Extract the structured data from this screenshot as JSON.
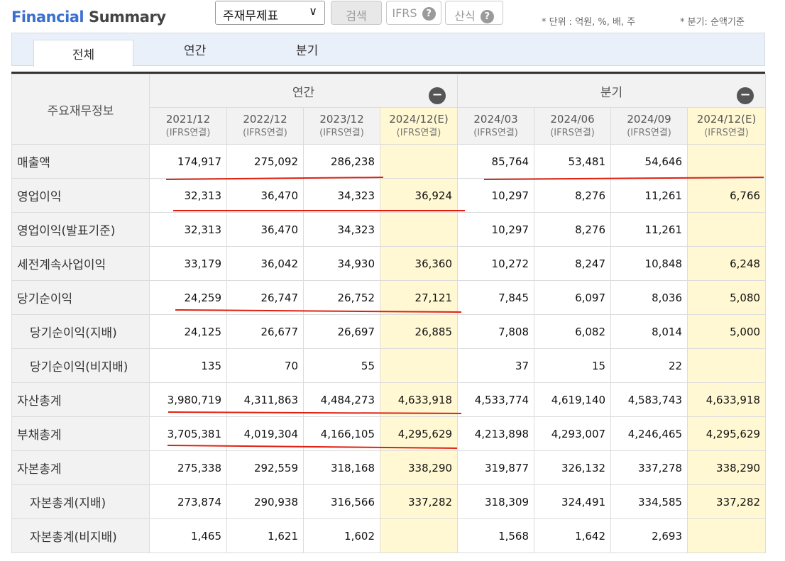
{
  "header": {
    "title_part1": "Financial",
    "title_part2": "Summary",
    "select_value": "주재무제표",
    "search_label": "검색",
    "ifrs_label": "IFRS",
    "calc_label": "산식",
    "help_glyph": "?",
    "unit_note": "* 단위 : 억원, %, 배, 주",
    "quarter_note": "* 분기: 순액기준"
  },
  "tabs": [
    "전체",
    "연간",
    "분기"
  ],
  "table": {
    "corner_label": "주요재무정보",
    "group_annual": "연간",
    "group_quarter": "분기",
    "collapse_glyph": "−",
    "columns": [
      {
        "date": "2021/12",
        "sub": "(IFRS연결)"
      },
      {
        "date": "2022/12",
        "sub": "(IFRS연결)"
      },
      {
        "date": "2023/12",
        "sub": "(IFRS연결)"
      },
      {
        "date": "2024/12(E)",
        "sub": "(IFRS연결)"
      },
      {
        "date": "2024/03",
        "sub": "(IFRS연결)"
      },
      {
        "date": "2024/06",
        "sub": "(IFRS연결)"
      },
      {
        "date": "2024/09",
        "sub": "(IFRS연결)"
      },
      {
        "date": "2024/12(E)",
        "sub": "(IFRS연결)"
      }
    ],
    "rows": [
      {
        "label": "매출액",
        "values": [
          "174,917",
          "275,092",
          "286,238",
          "",
          "85,764",
          "53,481",
          "54,646",
          ""
        ]
      },
      {
        "label": "영업이익",
        "values": [
          "32,313",
          "36,470",
          "34,323",
          "36,924",
          "10,297",
          "8,276",
          "11,261",
          "6,766"
        ]
      },
      {
        "label": "영업이익(발표기준)",
        "values": [
          "32,313",
          "36,470",
          "34,323",
          "",
          "10,297",
          "8,276",
          "11,261",
          ""
        ]
      },
      {
        "label": "세전계속사업이익",
        "values": [
          "33,179",
          "36,042",
          "34,930",
          "36,360",
          "10,272",
          "8,247",
          "10,848",
          "6,248"
        ]
      },
      {
        "label": "당기순이익",
        "values": [
          "24,259",
          "26,747",
          "26,752",
          "27,121",
          "7,845",
          "6,097",
          "8,036",
          "5,080"
        ]
      },
      {
        "label": "당기순이익(지배)",
        "values": [
          "24,125",
          "26,677",
          "26,697",
          "26,885",
          "7,808",
          "6,082",
          "8,014",
          "5,000"
        ]
      },
      {
        "label": "당기순이익(비지배)",
        "values": [
          "135",
          "70",
          "55",
          "",
          "37",
          "15",
          "22",
          ""
        ]
      },
      {
        "label": "자산총계",
        "values": [
          "3,980,719",
          "4,311,863",
          "4,484,273",
          "4,633,918",
          "4,533,774",
          "4,619,140",
          "4,583,743",
          "4,633,918"
        ]
      },
      {
        "label": "부채총계",
        "values": [
          "3,705,381",
          "4,019,304",
          "4,166,105",
          "4,295,629",
          "4,213,898",
          "4,293,007",
          "4,246,465",
          "4,295,629"
        ]
      },
      {
        "label": "자본총계",
        "values": [
          "275,338",
          "292,559",
          "318,168",
          "338,290",
          "319,877",
          "326,132",
          "337,278",
          "338,290"
        ]
      },
      {
        "label": "자본총계(지배)",
        "values": [
          "273,874",
          "290,938",
          "316,566",
          "337,282",
          "318,309",
          "324,491",
          "334,585",
          "337,282"
        ]
      },
      {
        "label": "자본총계(비지배)",
        "values": [
          "1,465",
          "1,621",
          "1,602",
          "",
          "1,568",
          "1,642",
          "2,693",
          ""
        ]
      }
    ]
  },
  "annotation_color": "#e02010"
}
